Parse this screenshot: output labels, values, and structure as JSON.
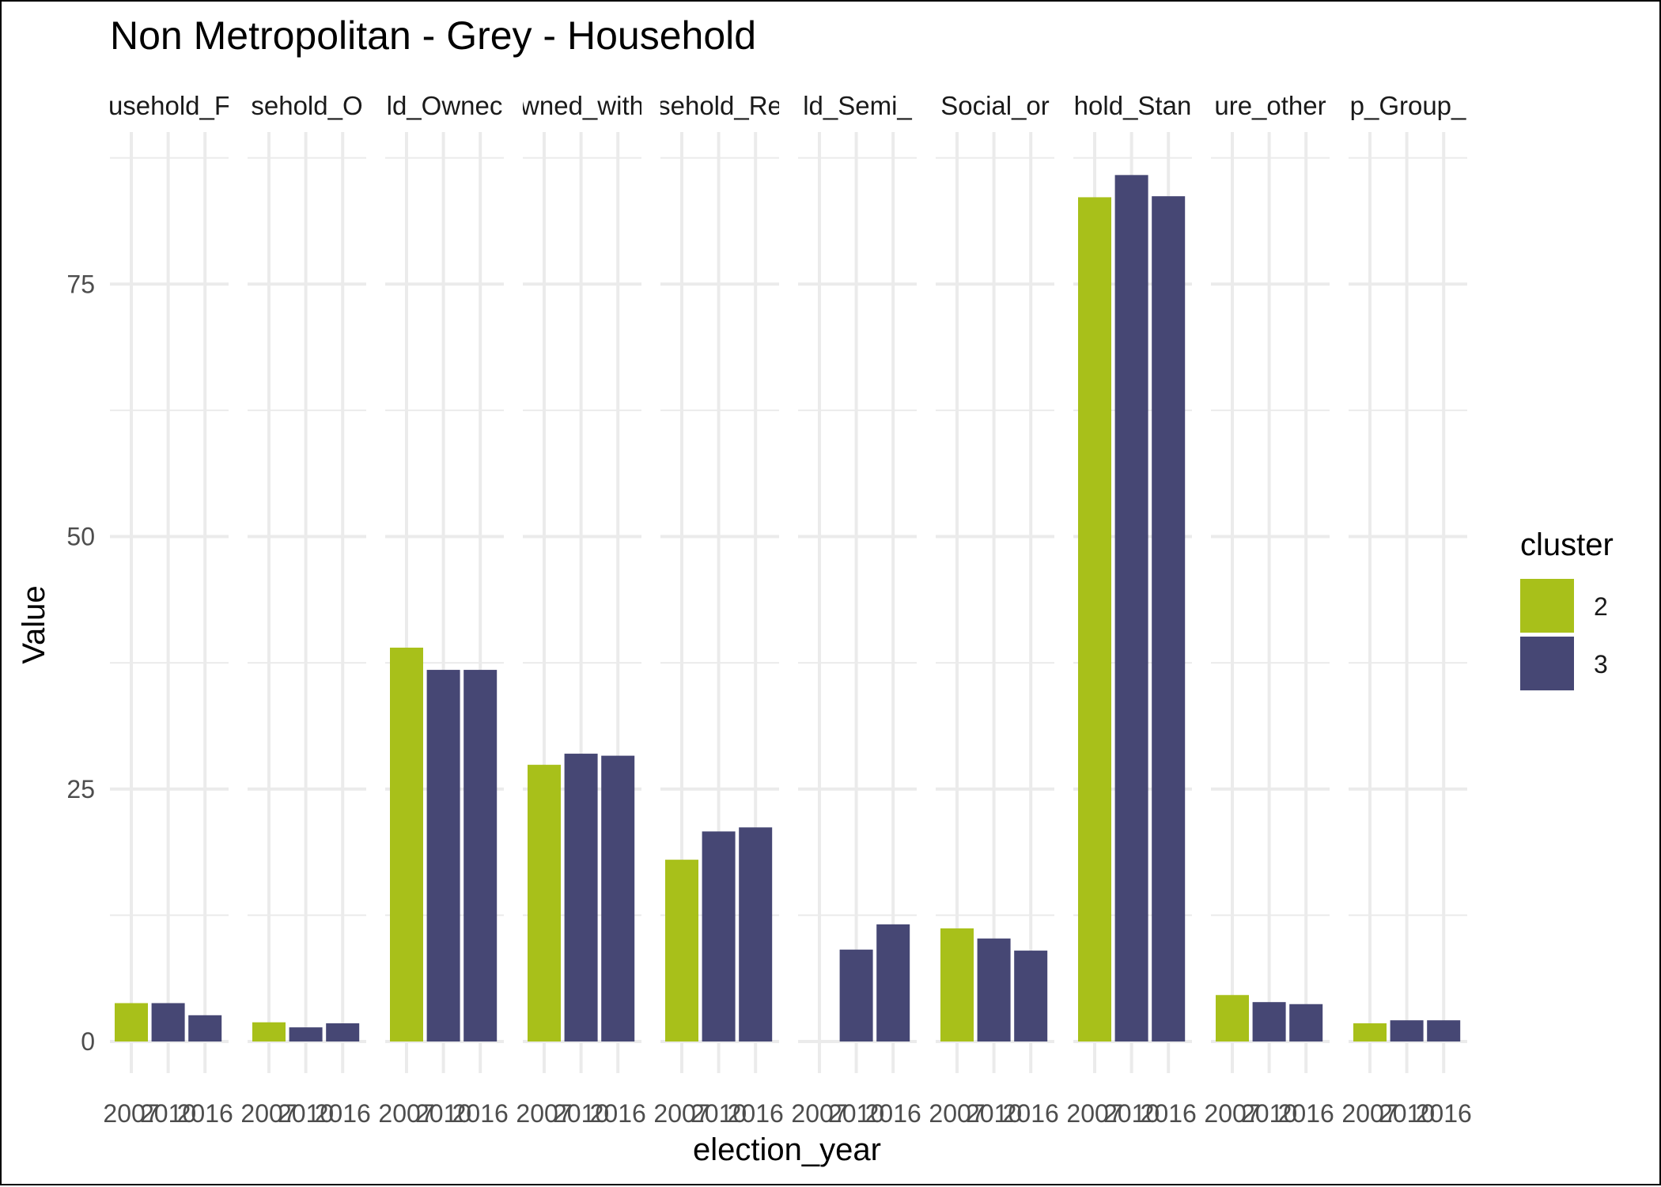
{
  "chart_data": {
    "type": "bar",
    "title": "Non Metropolitan - Grey - Household",
    "xlabel": "election_year",
    "ylabel": "Value",
    "ylim": [
      -3,
      90
    ],
    "yticks": [
      0,
      25,
      50,
      75
    ],
    "grid": true,
    "legend": {
      "title": "cluster",
      "position": "right",
      "entries": [
        "2",
        "3"
      ]
    },
    "colors": {
      "2": "#a8c01a",
      "3": "#464774"
    },
    "categories": [
      "2007",
      "2010",
      "2016"
    ],
    "facets": [
      {
        "label": "usehold_F",
        "bars": [
          {
            "x": "2007",
            "cluster": "2",
            "value": 3.8
          },
          {
            "x": "2010",
            "cluster": "3",
            "value": 3.8
          },
          {
            "x": "2016",
            "cluster": "3",
            "value": 2.6
          }
        ]
      },
      {
        "label": "sehold_O",
        "bars": [
          {
            "x": "2007",
            "cluster": "2",
            "value": 1.9
          },
          {
            "x": "2010",
            "cluster": "3",
            "value": 1.4
          },
          {
            "x": "2016",
            "cluster": "3",
            "value": 1.8
          }
        ]
      },
      {
        "label": "ld_Ownec",
        "bars": [
          {
            "x": "2007",
            "cluster": "2",
            "value": 39.0
          },
          {
            "x": "2010",
            "cluster": "3",
            "value": 36.8
          },
          {
            "x": "2016",
            "cluster": "3",
            "value": 36.8
          }
        ]
      },
      {
        "label": "wned_with",
        "bars": [
          {
            "x": "2007",
            "cluster": "2",
            "value": 27.4
          },
          {
            "x": "2010",
            "cluster": "3",
            "value": 28.5
          },
          {
            "x": "2016",
            "cluster": "3",
            "value": 28.3
          }
        ]
      },
      {
        "label": "sehold_Re",
        "bars": [
          {
            "x": "2007",
            "cluster": "2",
            "value": 18.0
          },
          {
            "x": "2010",
            "cluster": "3",
            "value": 20.8
          },
          {
            "x": "2016",
            "cluster": "3",
            "value": 21.2
          }
        ]
      },
      {
        "label": "ld_Semi_",
        "bars": [
          {
            "x": "2010",
            "cluster": "3",
            "value": 9.1
          },
          {
            "x": "2016",
            "cluster": "3",
            "value": 11.6
          }
        ]
      },
      {
        "label": "Social_or",
        "bars": [
          {
            "x": "2007",
            "cluster": "2",
            "value": 11.2
          },
          {
            "x": "2010",
            "cluster": "3",
            "value": 10.2
          },
          {
            "x": "2016",
            "cluster": "3",
            "value": 9.0
          }
        ]
      },
      {
        "label": "hold_Stan",
        "bars": [
          {
            "x": "2007",
            "cluster": "2",
            "value": 83.6
          },
          {
            "x": "2010",
            "cluster": "3",
            "value": 85.8
          },
          {
            "x": "2016",
            "cluster": "3",
            "value": 83.7
          }
        ]
      },
      {
        "label": "ure_other",
        "bars": [
          {
            "x": "2007",
            "cluster": "2",
            "value": 4.6
          },
          {
            "x": "2010",
            "cluster": "3",
            "value": 3.9
          },
          {
            "x": "2016",
            "cluster": "3",
            "value": 3.7
          }
        ]
      },
      {
        "label": "p_Group_",
        "bars": [
          {
            "x": "2007",
            "cluster": "2",
            "value": 1.8
          },
          {
            "x": "2010",
            "cluster": "3",
            "value": 2.1
          },
          {
            "x": "2016",
            "cluster": "3",
            "value": 2.1
          }
        ]
      }
    ]
  }
}
